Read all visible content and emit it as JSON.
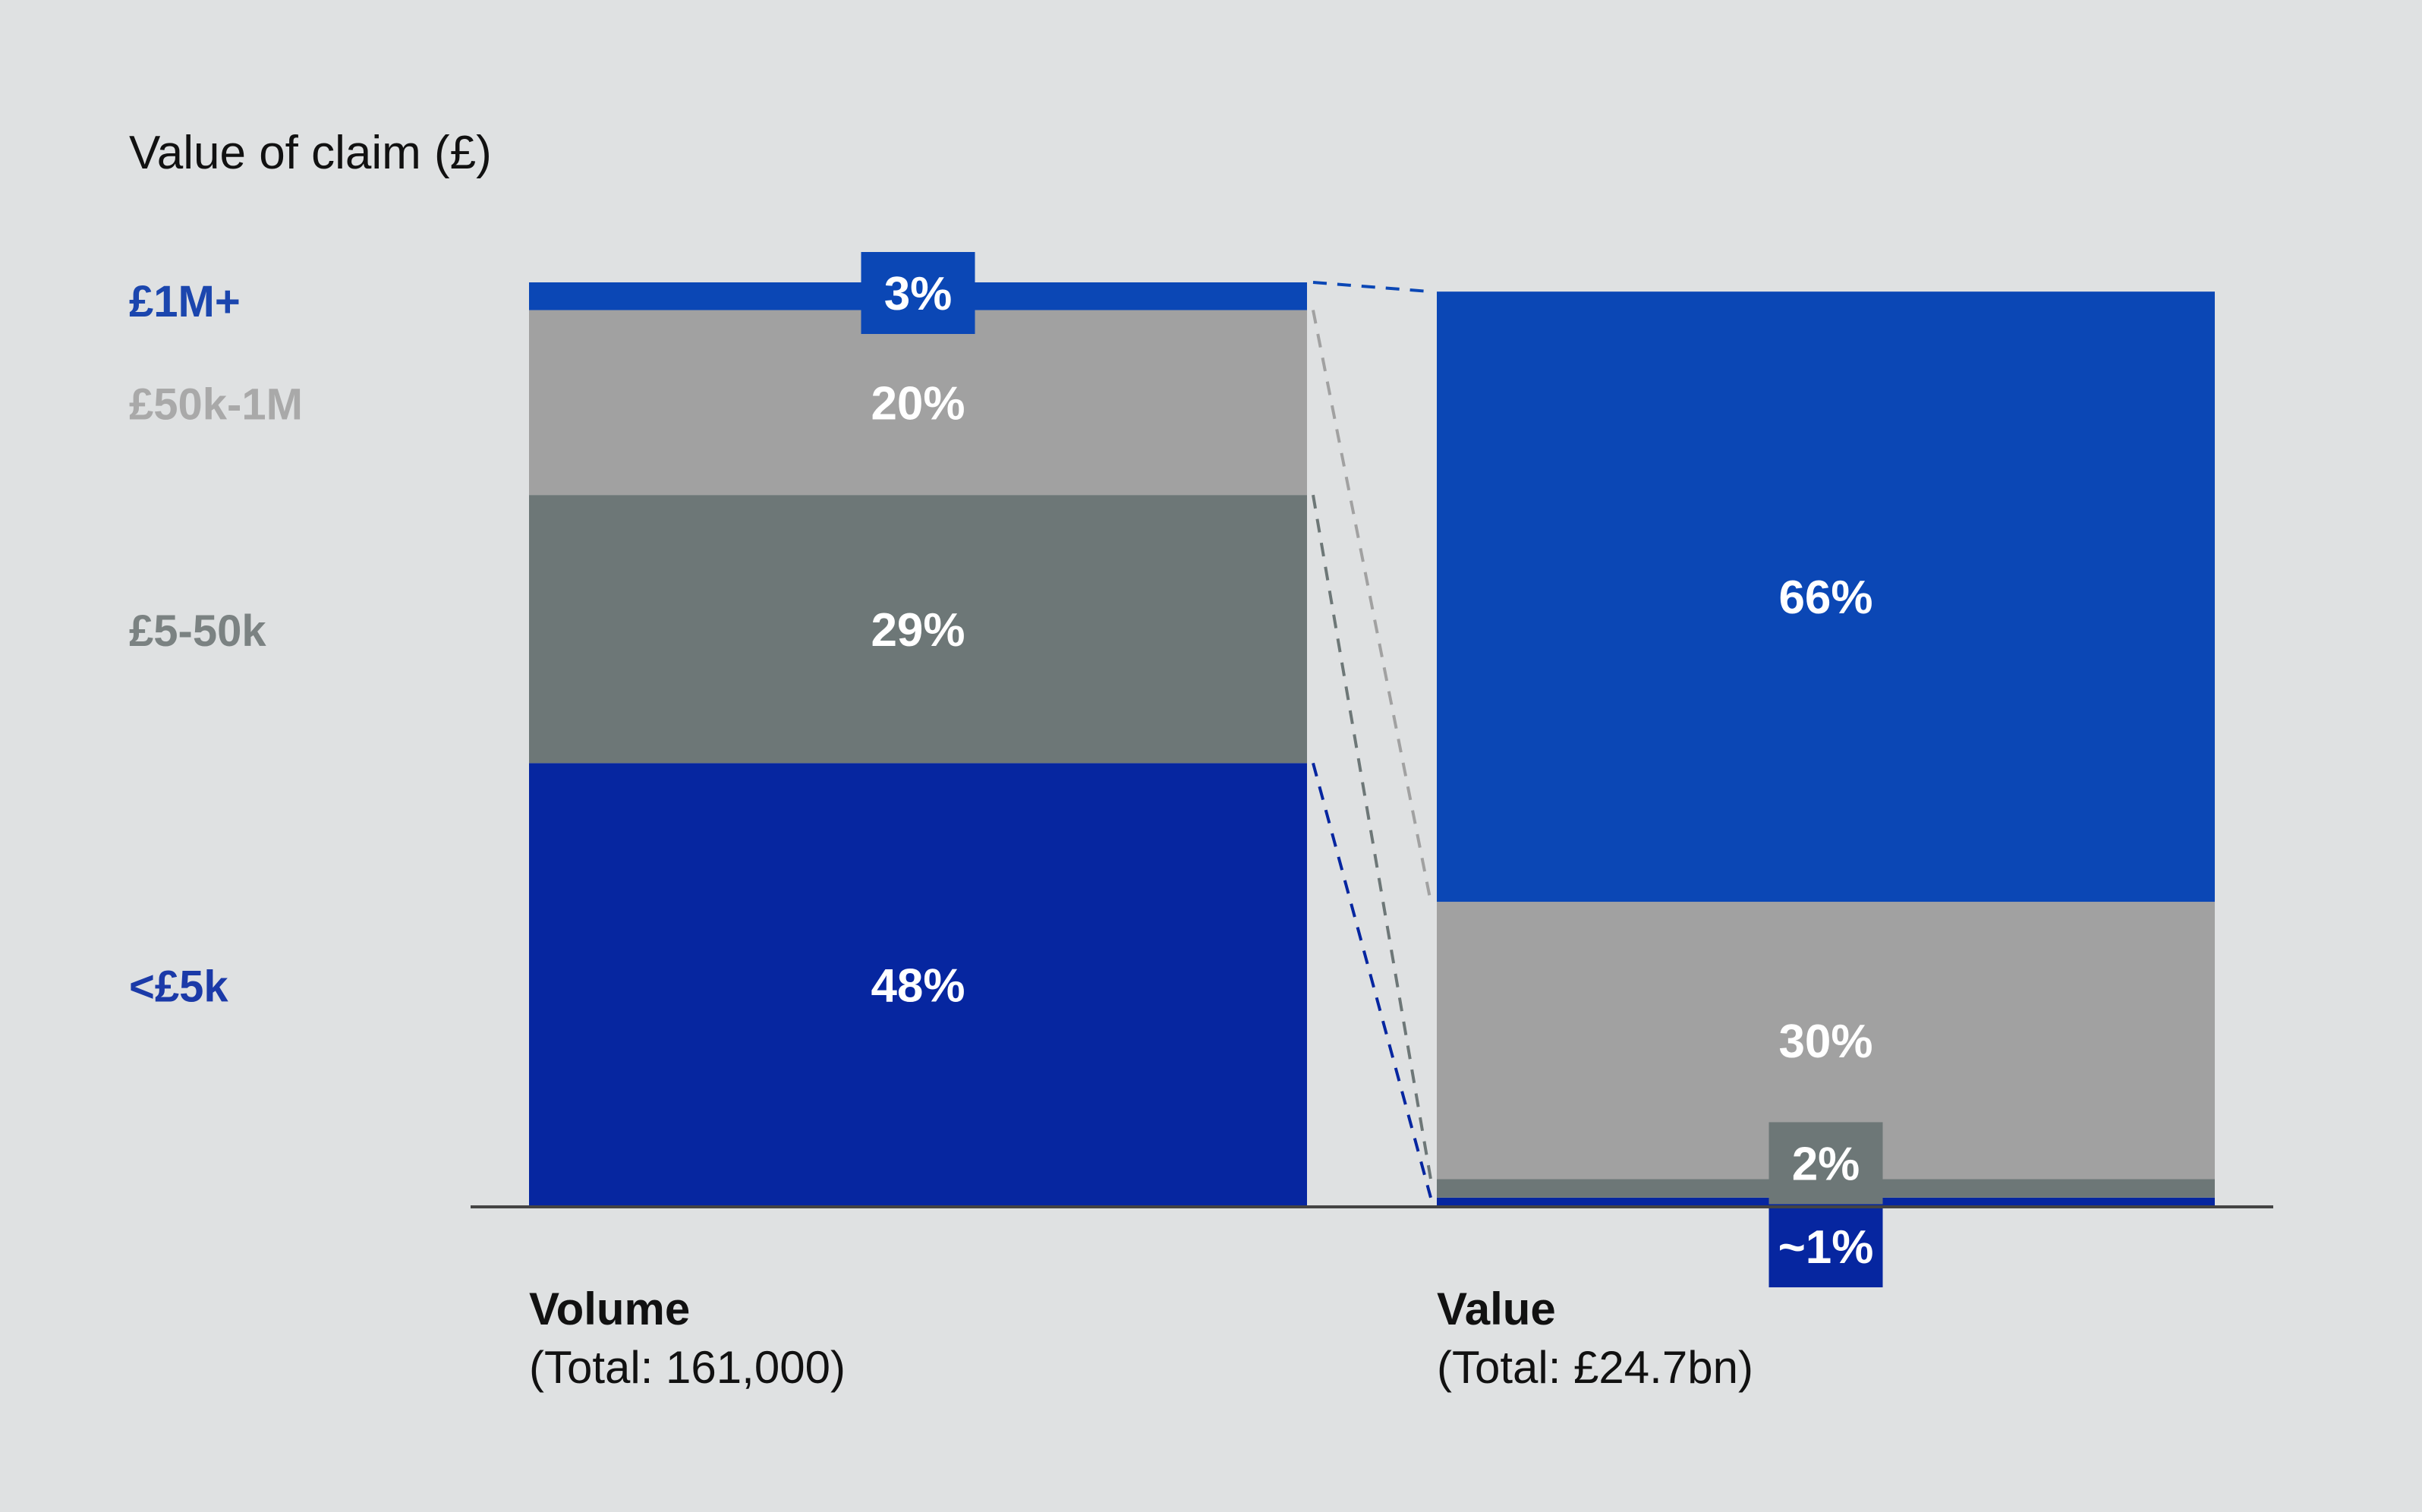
{
  "chart_data": {
    "type": "bar",
    "stacked": true,
    "normalized_percent": true,
    "title": "Value of claim (£)",
    "categories": [
      {
        "label": "Volume",
        "sublabel": "(Total: 161,000)"
      },
      {
        "label": "Value",
        "sublabel": "(Total: £24.7bn)"
      }
    ],
    "series": [
      {
        "name": "<£5k",
        "color": "#0626a0",
        "label_color": "#1b3aa8",
        "values": [
          48,
          1
        ],
        "value_labels": [
          "48%",
          "~1%"
        ]
      },
      {
        "name": "£5-50k",
        "color": "#6d7777",
        "label_color": "#7b8282",
        "values": [
          29,
          2
        ],
        "value_labels": [
          "29%",
          "2%"
        ]
      },
      {
        "name": "£50k-1M",
        "color": "#a1a1a1",
        "label_color": "#a9a9a9",
        "values": [
          20,
          30
        ],
        "value_labels": [
          "20%",
          "30%"
        ]
      },
      {
        "name": "£1M+",
        "color": "#0b47b5",
        "label_color": "#1b46ae",
        "values": [
          3,
          66
        ],
        "value_labels": [
          "3%",
          "66%"
        ]
      }
    ],
    "ylim": [
      0,
      100
    ],
    "legend": "left",
    "grid": false
  },
  "colors": {
    "background": "#dfe1e2",
    "text_dark": "#111111",
    "text_light": "#ffffff",
    "axis": "#444444"
  }
}
